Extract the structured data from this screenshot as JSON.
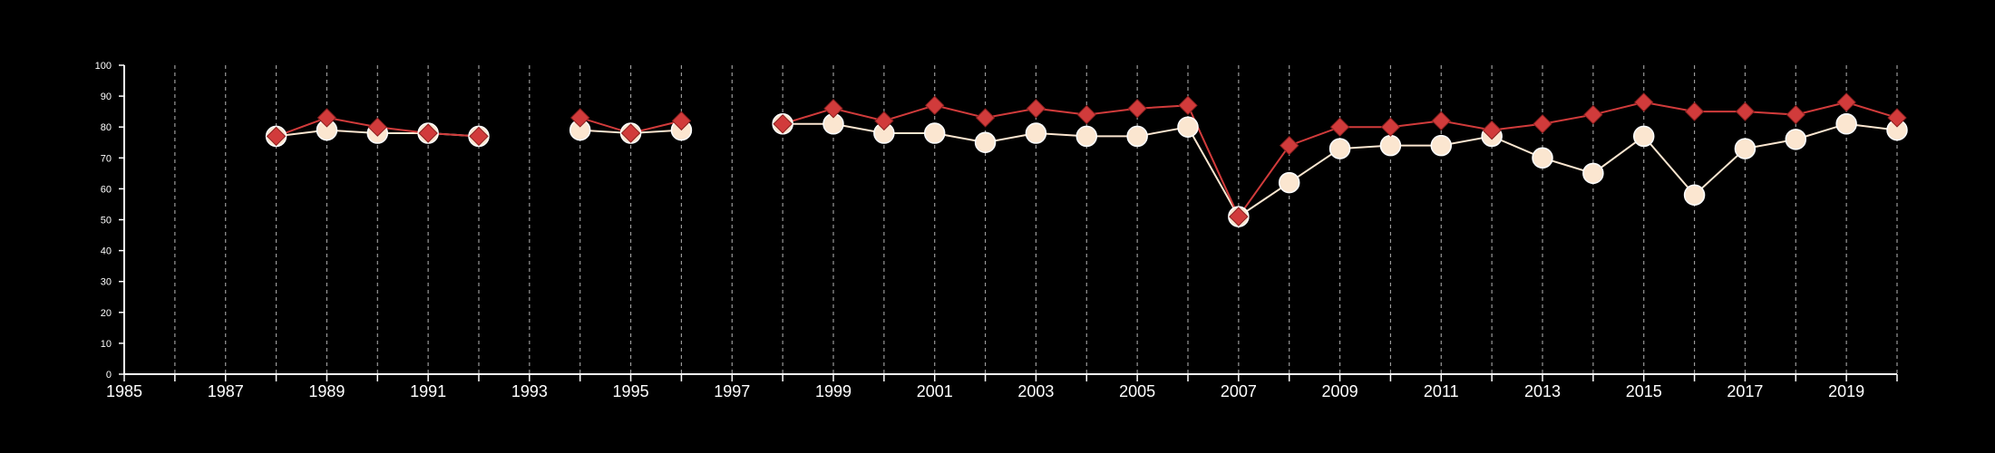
{
  "chart_data": {
    "type": "line",
    "title": "",
    "xlabel": "",
    "ylabel": "",
    "xlim": [
      1985,
      2020
    ],
    "ylim": [
      0,
      100
    ],
    "grid": "vertical dashed",
    "legend": "none",
    "y_ticks": [
      "0",
      "10",
      "20",
      "30",
      "40",
      "50",
      "60",
      "70",
      "80",
      "90",
      "100"
    ],
    "x_tick_labels": [
      "1985",
      "1987",
      "1989",
      "1991",
      "1993",
      "1995",
      "1997",
      "1999",
      "2001",
      "2003",
      "2005",
      "2007",
      "2009",
      "2011",
      "2013",
      "2015",
      "2017",
      "2019"
    ],
    "x": [
      1985,
      1986,
      1987,
      1988,
      1989,
      1990,
      1991,
      1992,
      1993,
      1994,
      1995,
      1996,
      1997,
      1998,
      1999,
      2000,
      2001,
      2002,
      2003,
      2004,
      2005,
      2006,
      2007,
      2008,
      2009,
      2010,
      2011,
      2012,
      2013,
      2014,
      2015,
      2016,
      2017,
      2018,
      2019,
      2020
    ],
    "series": [
      {
        "color": "#fbe6d0",
        "marker": "circle",
        "values": [
          null,
          null,
          null,
          77,
          79,
          78,
          78,
          77,
          null,
          79,
          78,
          79,
          null,
          81,
          81,
          78,
          78,
          75,
          78,
          77,
          77,
          80,
          51,
          62,
          73,
          74,
          74,
          77,
          70,
          65,
          77,
          58,
          73,
          76,
          81,
          79
        ]
      },
      {
        "color": "#d13b3b",
        "marker": "diamond",
        "values": [
          null,
          null,
          null,
          77,
          83,
          80,
          78,
          77,
          null,
          83,
          78,
          82,
          null,
          81,
          86,
          82,
          87,
          83,
          86,
          84,
          86,
          87,
          51,
          74,
          80,
          80,
          82,
          79,
          81,
          84,
          88,
          85,
          85,
          84,
          88,
          83
        ]
      }
    ]
  }
}
